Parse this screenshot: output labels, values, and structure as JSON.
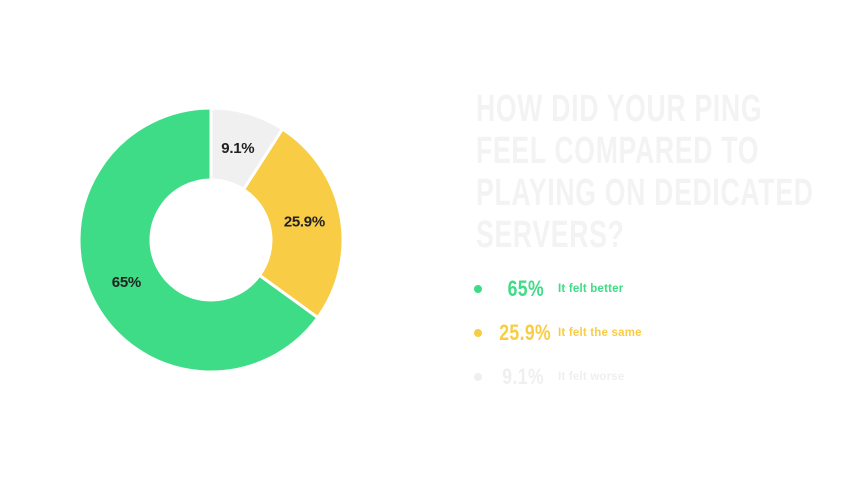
{
  "colors": {
    "background": "#ffffff",
    "green": "#3edc86",
    "yellow": "#f8cd45",
    "gray_slice": "#f0f0f0",
    "faded": "#efefef",
    "slice_label": "#212121",
    "slice_border": "#ffffff",
    "title": "#f3f3f3"
  },
  "title": {
    "lines": [
      "HOW DID YOUR PING",
      "FEEL COMPARED TO",
      "PLAYING ON DEDICATED",
      "SERVERS?"
    ],
    "color": "#f3f3f3"
  },
  "legend": {
    "items": [
      {
        "percent": "65%",
        "label": "It felt better",
        "color": "#3edc86"
      },
      {
        "percent": "25.9%",
        "label": "It felt the same",
        "color": "#f8cd45"
      },
      {
        "percent": "9.1%",
        "label": "It felt worse",
        "color": "#efefef"
      }
    ]
  },
  "chart_data": {
    "type": "pie",
    "variant": "donut",
    "title": "How did your ping feel compared to playing on dedicated servers?",
    "slices": [
      {
        "label": "It felt better",
        "value": 65,
        "display": "65%",
        "color": "#3edc86",
        "label_angle_hint": "lower-left"
      },
      {
        "label": "It felt the same",
        "value": 25.9,
        "display": "25.9%",
        "color": "#f8cd45",
        "label_angle_hint": "right"
      },
      {
        "label": "It felt worse",
        "value": 9.1,
        "display": "9.1%",
        "color": "#f0f0f0",
        "label_angle_hint": "top"
      }
    ],
    "total": 100,
    "start_angle": "top",
    "direction": "counter-clockwise",
    "outer_radius_px": 132,
    "inner_radius_px": 60,
    "label_radius_px": 95,
    "slice_label_color": "#212121",
    "slice_border_color": "#ffffff",
    "slice_border_width": 3,
    "legend_position": "right"
  }
}
